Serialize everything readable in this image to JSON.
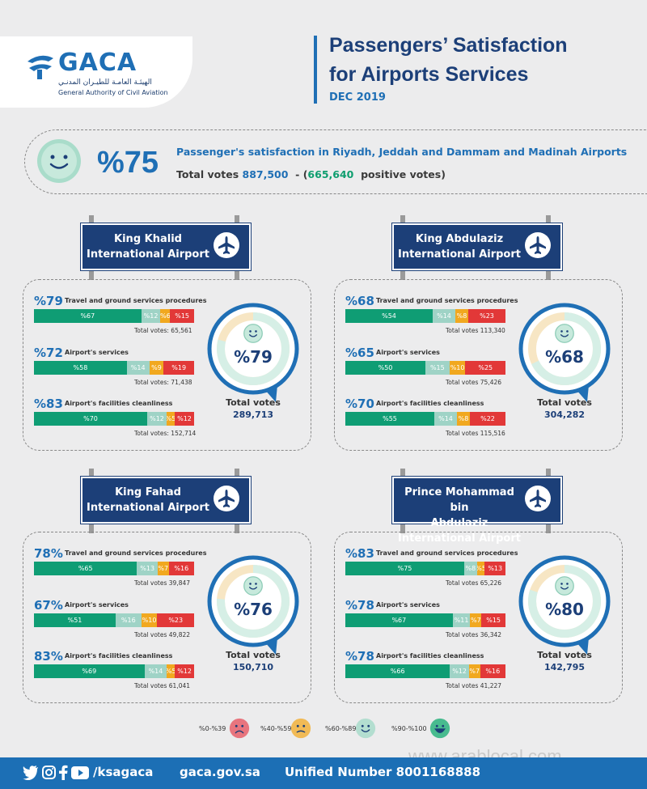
{
  "header": {
    "logo_text": "GACA",
    "logo_arabic": "الهيئـة العامـة للطيـران المدنـي",
    "logo_english": "General Authority of Civil Aviation",
    "title_line1": "Passengers’ Satisfaction",
    "title_line2": "for Airports Services",
    "date": "DEC 2019"
  },
  "summary": {
    "percent": "%75",
    "description": "Passenger's satisfaction in Riyadh, Jeddah and Dammam and Madinah Airports",
    "votes_label": "Total votes",
    "votes_total": "887,500",
    "votes_sep": "- (",
    "votes_positive": "665,640",
    "votes_positive_label": "positive votes)"
  },
  "airports": [
    {
      "name": "King Khalid International Airport",
      "name_line1": "King Khalid",
      "name_line2": "International Airport",
      "overall_pct": "%79",
      "overall_value": 79,
      "total_votes_label": "Total votes",
      "total_votes": "289,713",
      "metrics": [
        {
          "pct": "%79",
          "label": "Travel and ground services procedures",
          "segments": [
            {
              "v": 67,
              "t": "%67"
            },
            {
              "v": 12,
              "t": "%12"
            },
            {
              "v": 6,
              "t": "%6"
            },
            {
              "v": 15,
              "t": "%15"
            }
          ],
          "total": "Total votes: 65,561"
        },
        {
          "pct": "%72",
          "label": "Airport's services",
          "segments": [
            {
              "v": 58,
              "t": "%58"
            },
            {
              "v": 14,
              "t": "%14"
            },
            {
              "v": 9,
              "t": "%9"
            },
            {
              "v": 19,
              "t": "%19"
            }
          ],
          "total": "Total votes: 71,438"
        },
        {
          "pct": "%83",
          "label": "Airport's facilities cleanliness",
          "segments": [
            {
              "v": 70,
              "t": "%70"
            },
            {
              "v": 12,
              "t": "%12"
            },
            {
              "v": 5,
              "t": "%5"
            },
            {
              "v": 12,
              "t": "%12"
            }
          ],
          "total": "Total votes: 152,714"
        }
      ]
    },
    {
      "name": "King Abdulaziz International Airport",
      "name_line1": "King Abdulaziz",
      "name_line2": "International Airport",
      "overall_pct": "%68",
      "overall_value": 68,
      "total_votes_label": "Total votes",
      "total_votes": "304,282",
      "metrics": [
        {
          "pct": "%68",
          "label": "Travel and ground services procedures",
          "segments": [
            {
              "v": 54,
              "t": "%54"
            },
            {
              "v": 14,
              "t": "%14"
            },
            {
              "v": 8,
              "t": "%8"
            },
            {
              "v": 23,
              "t": "%23"
            }
          ],
          "total": "Total votes 113,340"
        },
        {
          "pct": "%65",
          "label": "Airport's services",
          "segments": [
            {
              "v": 50,
              "t": "%50"
            },
            {
              "v": 15,
              "t": "%15"
            },
            {
              "v": 10,
              "t": "%10"
            },
            {
              "v": 25,
              "t": "%25"
            }
          ],
          "total": "Total votes 75,426"
        },
        {
          "pct": "%70",
          "label": "Airport's facilities cleanliness",
          "segments": [
            {
              "v": 55,
              "t": "%55"
            },
            {
              "v": 14,
              "t": "%14"
            },
            {
              "v": 8,
              "t": "%8"
            },
            {
              "v": 22,
              "t": "%22"
            }
          ],
          "total": "Total votes 115,516"
        }
      ]
    },
    {
      "name": "King Fahad International Airport",
      "name_line1": "King Fahad",
      "name_line2": "International Airport",
      "overall_pct": "%76",
      "overall_value": 76,
      "total_votes_label": "Total votes",
      "total_votes": "150,710",
      "metrics": [
        {
          "pct": "78%",
          "label": "Travel and ground services procedures",
          "segments": [
            {
              "v": 65,
              "t": "%65"
            },
            {
              "v": 13,
              "t": "%13"
            },
            {
              "v": 7,
              "t": "%7"
            },
            {
              "v": 16,
              "t": "%16"
            }
          ],
          "total": "Total votes 39,847"
        },
        {
          "pct": "67%",
          "label": "Airport's services",
          "segments": [
            {
              "v": 51,
              "t": "%51"
            },
            {
              "v": 16,
              "t": "%16"
            },
            {
              "v": 10,
              "t": "%10"
            },
            {
              "v": 23,
              "t": "%23"
            }
          ],
          "total": "Total votes 49,822"
        },
        {
          "pct": "83%",
          "label": "Airport's facilities cleanliness",
          "segments": [
            {
              "v": 69,
              "t": "%69"
            },
            {
              "v": 14,
              "t": "%14"
            },
            {
              "v": 5,
              "t": "%5"
            },
            {
              "v": 12,
              "t": "%12"
            }
          ],
          "total": "Total votes 61,041"
        }
      ]
    },
    {
      "name": "Prince Mohammad bin Abdulaziz International Airport",
      "name_line1": "Prince Mohammad bin",
      "name_line2": "Abdulaziz International Airport",
      "overall_pct": "%80",
      "overall_value": 80,
      "total_votes_label": "Total votes",
      "total_votes": "142,795",
      "metrics": [
        {
          "pct": "%83",
          "label": "Travel and ground services procedures",
          "segments": [
            {
              "v": 75,
              "t": "%75"
            },
            {
              "v": 8,
              "t": "%8"
            },
            {
              "v": 5,
              "t": "%5"
            },
            {
              "v": 13,
              "t": "%13"
            }
          ],
          "total": "Total votes 65,226"
        },
        {
          "pct": "%78",
          "label": "Airport's services",
          "segments": [
            {
              "v": 67,
              "t": "%67"
            },
            {
              "v": 11,
              "t": "%11"
            },
            {
              "v": 7,
              "t": "%7"
            },
            {
              "v": 15,
              "t": "%15"
            }
          ],
          "total": "Total votes 36,342"
        },
        {
          "pct": "%78",
          "label": "Airport's facilities cleanliness",
          "segments": [
            {
              "v": 66,
              "t": "%66"
            },
            {
              "v": 12,
              "t": "%12"
            },
            {
              "v": 7,
              "t": "%7"
            },
            {
              "v": 16,
              "t": "%16"
            }
          ],
          "total": "Total votes 41,227"
        }
      ]
    }
  ],
  "legend": [
    {
      "label": "%0-%39",
      "face": "sad-face-icon",
      "color": "#e7606a"
    },
    {
      "label": "%40-%59",
      "face": "frown-face-icon",
      "color": "#f2b23b"
    },
    {
      "label": "%60-%89",
      "face": "smile-face-icon",
      "color": "#a9dcca"
    },
    {
      "label": "%90-%100",
      "face": "grin-face-icon",
      "color": "#2bb37e"
    }
  ],
  "colors": {
    "very_satisfied": "#0f9d74",
    "satisfied": "#9fd3c6",
    "neutral": "#f1a81f",
    "unsatisfied": "#e23838",
    "brand_blue": "#1f6fb5",
    "navy": "#1c3f78"
  },
  "footer": {
    "handle": "/ksagaca",
    "website": "gaca.gov.sa",
    "unified": "Unified Number 8001168888"
  },
  "watermark": "www.arablocal.com"
}
